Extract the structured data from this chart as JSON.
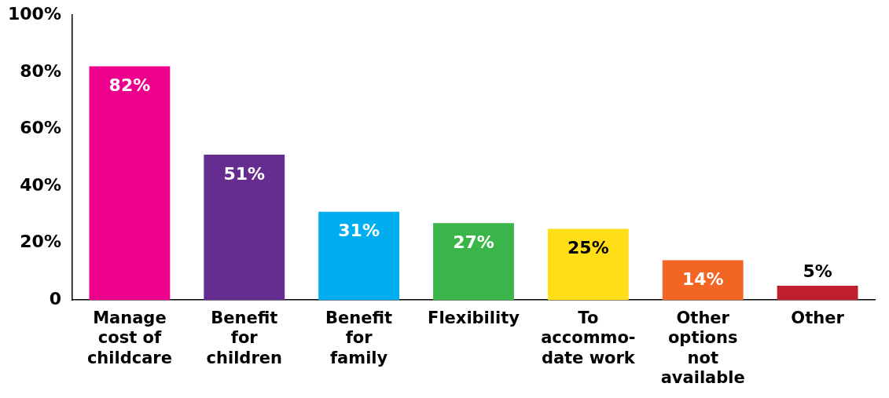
{
  "chart_data": {
    "type": "bar",
    "categories": [
      "Manage\ncost of\nchildcare",
      "Benefit\nfor\nchildren",
      "Benefit\nfor\nfamily",
      "Flexibility",
      "To\naccommo-\ndate work",
      "Other\noptions\nnot\navailable",
      "Other"
    ],
    "values": [
      82,
      51,
      31,
      27,
      25,
      14,
      5
    ],
    "colors": [
      "#ec008c",
      "#662d91",
      "#00aeef",
      "#39b54a",
      "#ffde17",
      "#f26522",
      "#be1e2d"
    ],
    "value_labels": [
      "82%",
      "51%",
      "31%",
      "27%",
      "25%",
      "14%",
      "5%"
    ],
    "ylim": [
      0,
      100
    ],
    "yticks": [
      0,
      {
        "value": 20,
        "label": "20%"
      },
      {
        "value": 40,
        "label": "40%"
      },
      {
        "value": 60,
        "label": "60%"
      },
      {
        "value": 80,
        "label": "80%"
      },
      {
        "value": 100,
        "label": "100%"
      }
    ],
    "grid": false,
    "legend": false
  }
}
